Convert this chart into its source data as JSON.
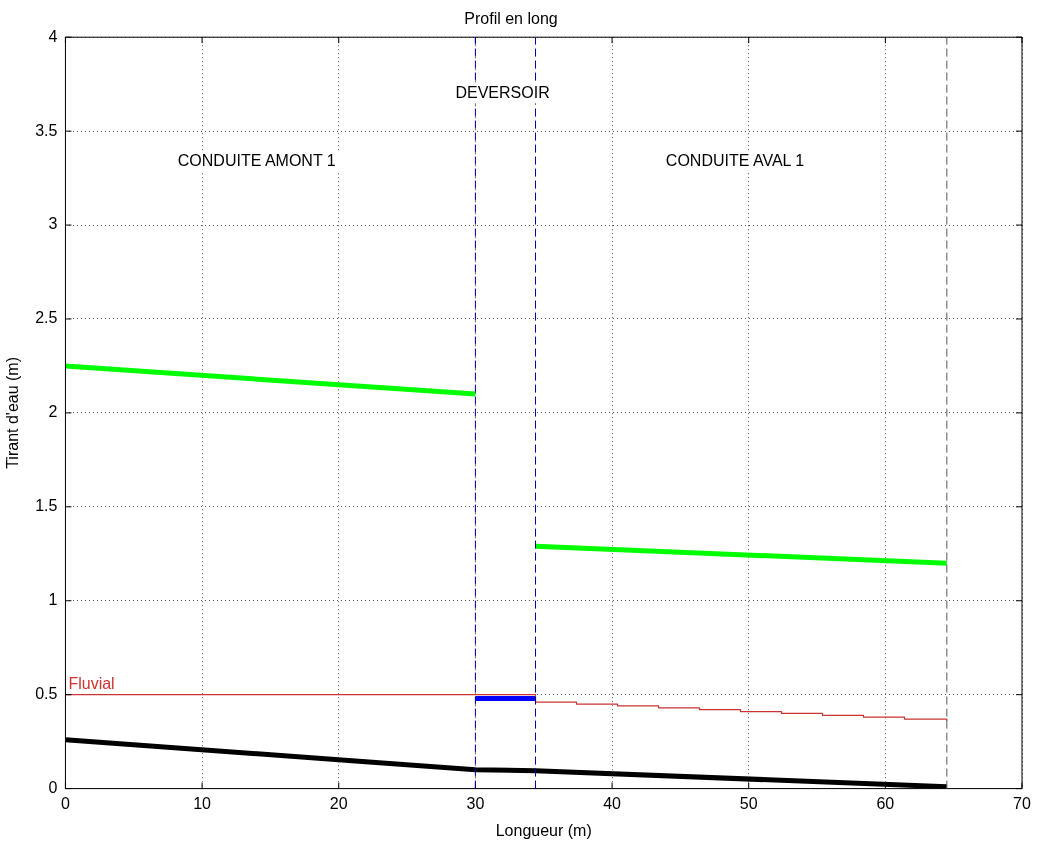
{
  "chart_data": {
    "type": "line",
    "title": "Profil en long",
    "xlabel": "Longueur (m)",
    "ylabel": "Tirant d'eau (m)",
    "xlim": [
      0,
      70
    ],
    "xticks": [
      0,
      10,
      20,
      30,
      40,
      50,
      60,
      70
    ],
    "ylim": [
      0,
      4
    ],
    "yticks": [
      0,
      0.5,
      1,
      1.5,
      2,
      2.5,
      3,
      3.5,
      4
    ],
    "grid": true,
    "legend": false,
    "marker": "none",
    "series": [
      {
        "color": "#00ff00",
        "x": [
          0,
          30
        ],
        "values": [
          2.25,
          2.1
        ]
      },
      {
        "color": "#00ff00",
        "x": [
          34.4,
          64.5
        ],
        "values": [
          1.29,
          1.2
        ]
      },
      {
        "color": "#000000",
        "x": [
          0,
          30,
          34.4,
          64.5
        ],
        "values": [
          0.26,
          0.1,
          0.095,
          0.01
        ]
      },
      {
        "name": "Fluvial",
        "color": "#cc3333",
        "type": "step",
        "x": [
          0,
          30,
          34.4,
          37.4,
          40.4,
          43.4,
          46.4,
          49.4,
          52.4,
          55.4,
          58.4,
          61.4,
          64.5
        ],
        "values": [
          0.5,
          0.5,
          0.46,
          0.45,
          0.44,
          0.43,
          0.42,
          0.41,
          0.4,
          0.39,
          0.38,
          0.37,
          0.36
        ]
      },
      {
        "color": "#0000ff",
        "x": [
          30,
          34.4
        ],
        "values": [
          0.48,
          0.48
        ]
      }
    ],
    "ref_lines": [
      {
        "axis": "x",
        "value": 30,
        "color": "#000099",
        "line_style": "dashed"
      },
      {
        "axis": "x",
        "value": 34.4,
        "color": "#000099",
        "line_style": "dashed"
      },
      {
        "axis": "x",
        "value": 64.5,
        "color": "#555555",
        "line_style": "dashed"
      }
    ],
    "annotations": [
      "DEVERSOIR",
      "CONDUITE AMONT 1",
      "CONDUITE AVAL 1"
    ]
  }
}
